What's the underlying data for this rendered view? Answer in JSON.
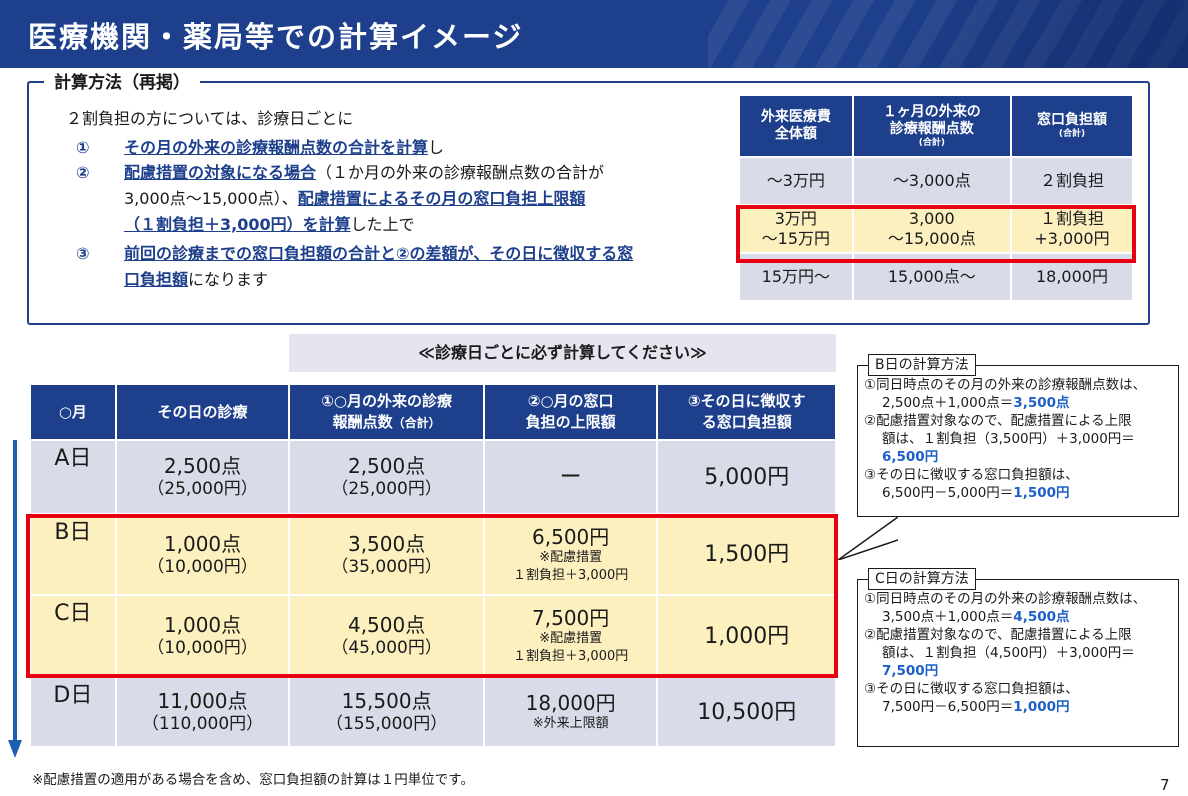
{
  "title": "医療機関・薬局等での計算イメージ",
  "method": {
    "label": "計算方法（再掲）",
    "intro": "２割負担の方については、診療日ごとに",
    "item1_num": "①",
    "item1_bold": "その月の外来の診療報酬点数の合計を計算",
    "item1_tail": "し",
    "item2_num": "②",
    "item2_bold1": "配慮措置の対象になる場合",
    "item2_text1": "（１か月の外来の診療報酬点数の合計が",
    "item2_text2": "3,000点～15,000点）、",
    "item2_bold2": "配慮措置によるその月の窓口負担上限額",
    "item2_bold3": "（１割負担＋3,000円）を計算",
    "item2_tail": "した上で",
    "item3_num": "③",
    "item3_bold1": "前回の診療までの窓口負担額の合計と②の差額が、その日に徴収する窓",
    "item3_bold2": "口負担額",
    "item3_tail": "になります"
  },
  "summary": {
    "headers": [
      {
        "l1": "外来医療費",
        "l2": "全体額",
        "small": ""
      },
      {
        "l1": "１ヶ月の外来の",
        "l2": "診療報酬点数",
        "small": "(合計)"
      },
      {
        "l1": "窓口負担額",
        "l2": "",
        "small": "(合計)"
      }
    ],
    "rows": [
      {
        "c1a": "～3万円",
        "c1b": "",
        "c2a": "～3,000点",
        "c2b": "",
        "c3a": "２割負担",
        "c3b": ""
      },
      {
        "c1a": "3万円",
        "c1b": "～15万円",
        "c2a": "3,000",
        "c2b": "～15,000点",
        "c3a": "１割負担",
        "c3b": "+3,000円"
      },
      {
        "c1a": "15万円～",
        "c1b": "",
        "c2a": "15,000点～",
        "c2b": "",
        "c3a": "18,000円",
        "c3b": ""
      }
    ]
  },
  "banner": "≪診療日ごとに必ず計算してください≫",
  "main_table": {
    "headers": [
      {
        "l1": "○月",
        "l2": ""
      },
      {
        "l1": "その日の診療",
        "l2": ""
      },
      {
        "l1": "①○月の外来の診療",
        "l2": "報酬点数",
        "small": "（合計）"
      },
      {
        "l1": "②○月の窓口",
        "l2": "負担の上限額"
      },
      {
        "l1": "③その日に徴収す",
        "l2": "る窓口負担額"
      }
    ],
    "rows": [
      {
        "day": "A日",
        "pts": "2,500点",
        "pts_yen": "（25,000円）",
        "total": "2,500点",
        "total_yen": "（25,000円）",
        "cap": "ー",
        "cap_note1": "",
        "cap_note2": "",
        "pay": "5,000円"
      },
      {
        "day": "B日",
        "pts": "1,000点",
        "pts_yen": "（10,000円）",
        "total": "3,500点",
        "total_yen": "（35,000円）",
        "cap": "6,500円",
        "cap_note1": "※配慮措置",
        "cap_note2": "１割負担＋3,000円",
        "pay": "1,500円"
      },
      {
        "day": "C日",
        "pts": "1,000点",
        "pts_yen": "（10,000円）",
        "total": "4,500点",
        "total_yen": "（45,000円）",
        "cap": "7,500円",
        "cap_note1": "※配慮措置",
        "cap_note2": "１割負担＋3,000円",
        "pay": "1,000円"
      },
      {
        "day": "D日",
        "pts": "11,000点",
        "pts_yen": "（110,000円）",
        "total": "15,500点",
        "total_yen": "（155,000円）",
        "cap": "18,000円",
        "cap_note1": "※外来上限額",
        "cap_note2": "",
        "pay": "10,500円"
      }
    ]
  },
  "callout_b": {
    "title": "B日の計算方法",
    "l1": "①同日時点のその月の外来の診療報酬点数は、",
    "l2a": "2,500点＋1,000点＝",
    "l2b": "3,500点",
    "l3": "②配慮措置対象なので、配慮措置による上限",
    "l4": "額は、１割負担（3,500円）＋3,000円＝",
    "l5": "6,500円",
    "l6": "③その日に徴収する窓口負担額は、",
    "l7a": "6,500円－5,000円＝",
    "l7b": "1,500円"
  },
  "callout_c": {
    "title": "C日の計算方法",
    "l1": "①同日時点のその月の外来の診療報酬点数は、",
    "l2a": "3,500点＋1,000点＝",
    "l2b": "4,500点",
    "l3": "②配慮措置対象なので、配慮措置による上限",
    "l4": "額は、１割負担（4,500円）＋3,000円＝",
    "l5": "7,500円",
    "l6": "③その日に徴収する窓口負担額は、",
    "l7a": "7,500円－6,500円＝",
    "l7b": "1,000円"
  },
  "footnote": "※配慮措置の適用がある場合を含め、窓口負担額の計算は１円単位です。",
  "page_number": "7",
  "colors": {
    "navy": "#1d3f8c",
    "highlight": "#fcf0bf",
    "cell": "#d9dce8",
    "red": "#e60012",
    "blue_value": "#1f5fc8"
  }
}
